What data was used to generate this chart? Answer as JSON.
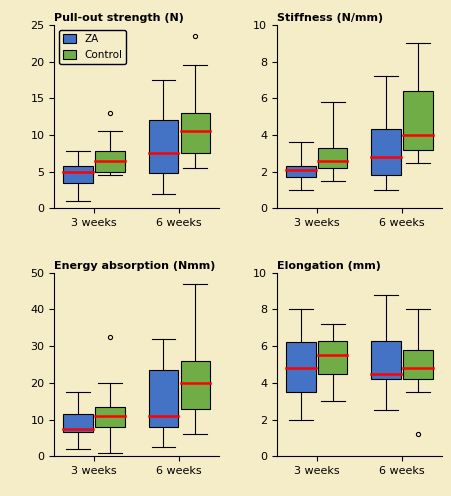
{
  "background_color": "#F5ECC8",
  "colors": {
    "ZA": "#4472C4",
    "Control": "#70AD47"
  },
  "median_color": "#FF0000",
  "box_width": 0.55,
  "group_centers": [
    1.0,
    2.6
  ],
  "offsets": [
    -0.3,
    0.3
  ],
  "xlabel_groups": [
    "3 weeks",
    "6 weeks"
  ],
  "xlim": [
    0.25,
    3.35
  ],
  "plots": [
    {
      "title": "Pull-out strength (N)",
      "ylim": [
        0,
        25
      ],
      "yticks": [
        0,
        5,
        10,
        15,
        20,
        25
      ],
      "groups": {
        "3weeks": {
          "ZA": {
            "q1": 3.5,
            "median": 5.0,
            "q3": 5.8,
            "whislo": 1.0,
            "whishi": 7.8,
            "fliers": []
          },
          "Control": {
            "q1": 5.0,
            "median": 6.5,
            "q3": 7.8,
            "whislo": 4.5,
            "whishi": 10.5,
            "fliers": [
              13.0
            ]
          }
        },
        "6weeks": {
          "ZA": {
            "q1": 4.8,
            "median": 7.5,
            "q3": 12.0,
            "whislo": 2.0,
            "whishi": 17.5,
            "fliers": []
          },
          "Control": {
            "q1": 7.5,
            "median": 10.5,
            "q3": 13.0,
            "whislo": 5.5,
            "whishi": 19.5,
            "fliers": [
              23.5
            ]
          }
        }
      }
    },
    {
      "title": "Stiffness (N/mm)",
      "ylim": [
        0,
        10
      ],
      "yticks": [
        0,
        2,
        4,
        6,
        8,
        10
      ],
      "groups": {
        "3weeks": {
          "ZA": {
            "q1": 1.7,
            "median": 2.1,
            "q3": 2.3,
            "whislo": 1.0,
            "whishi": 3.6,
            "fliers": []
          },
          "Control": {
            "q1": 2.2,
            "median": 2.6,
            "q3": 3.3,
            "whislo": 1.5,
            "whishi": 5.8,
            "fliers": []
          }
        },
        "6weeks": {
          "ZA": {
            "q1": 1.8,
            "median": 2.8,
            "q3": 4.3,
            "whislo": 1.0,
            "whishi": 7.2,
            "fliers": []
          },
          "Control": {
            "q1": 3.2,
            "median": 4.0,
            "q3": 6.4,
            "whislo": 2.5,
            "whishi": 9.0,
            "fliers": []
          }
        }
      }
    },
    {
      "title": "Energy absorption (Nmm)",
      "ylim": [
        0,
        50
      ],
      "yticks": [
        0,
        10,
        20,
        30,
        40,
        50
      ],
      "groups": {
        "3weeks": {
          "ZA": {
            "q1": 6.5,
            "median": 7.5,
            "q3": 11.5,
            "whislo": 2.0,
            "whishi": 17.5,
            "fliers": []
          },
          "Control": {
            "q1": 8.0,
            "median": 11.0,
            "q3": 13.5,
            "whislo": 1.0,
            "whishi": 20.0,
            "fliers": [
              32.5
            ]
          }
        },
        "6weeks": {
          "ZA": {
            "q1": 8.0,
            "median": 11.0,
            "q3": 23.5,
            "whislo": 2.5,
            "whishi": 32.0,
            "fliers": []
          },
          "Control": {
            "q1": 13.0,
            "median": 20.0,
            "q3": 26.0,
            "whislo": 6.0,
            "whishi": 47.0,
            "fliers": []
          }
        }
      }
    },
    {
      "title": "Elongation (mm)",
      "ylim": [
        0,
        10
      ],
      "yticks": [
        0,
        2,
        4,
        6,
        8,
        10
      ],
      "groups": {
        "3weeks": {
          "ZA": {
            "q1": 3.5,
            "median": 4.8,
            "q3": 6.2,
            "whislo": 2.0,
            "whishi": 8.0,
            "fliers": []
          },
          "Control": {
            "q1": 4.5,
            "median": 5.5,
            "q3": 6.3,
            "whislo": 3.0,
            "whishi": 7.2,
            "fliers": []
          }
        },
        "6weeks": {
          "ZA": {
            "q1": 4.2,
            "median": 4.5,
            "q3": 6.3,
            "whislo": 2.5,
            "whishi": 8.8,
            "fliers": []
          },
          "Control": {
            "q1": 4.2,
            "median": 4.8,
            "q3": 5.8,
            "whislo": 3.5,
            "whishi": 8.0,
            "fliers": [
              1.2
            ]
          }
        }
      }
    }
  ]
}
